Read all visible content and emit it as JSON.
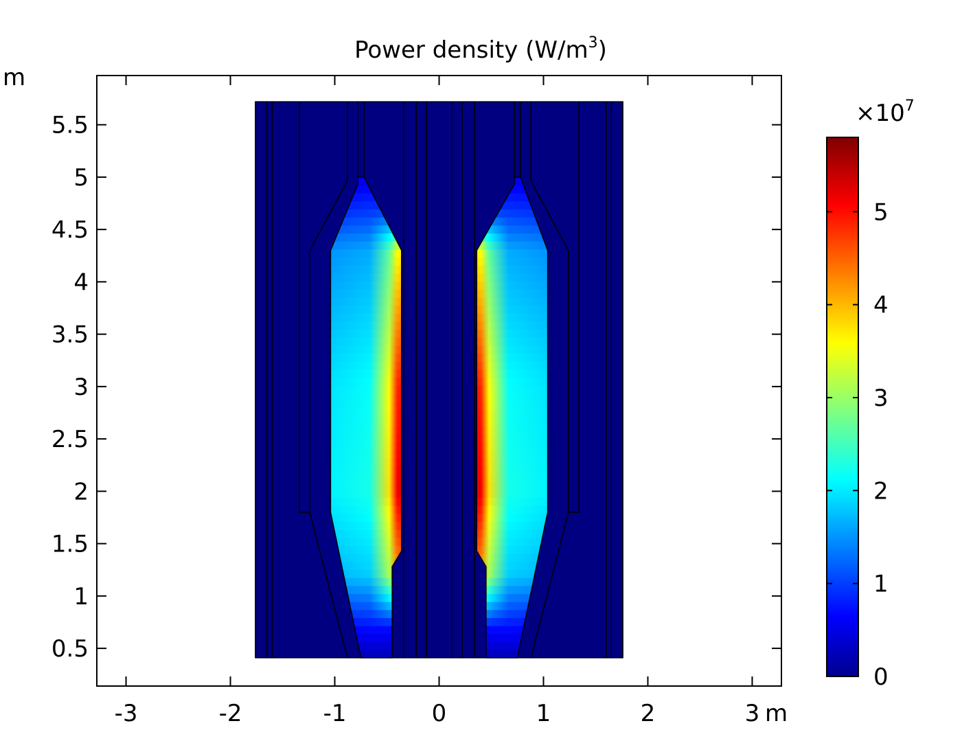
{
  "chart_data": {
    "type": "heatmap",
    "title": "Power density (W/m",
    "title_superscript": "3",
    "title_suffix": ")",
    "x_unit": "m",
    "y_unit": "m",
    "xlim": [
      -3.28,
      3.28
    ],
    "ylim": [
      0.14,
      5.97
    ],
    "x_ticks": [
      -3,
      -2,
      -1,
      0,
      1,
      2,
      3
    ],
    "x_tick_labels": [
      "-3",
      "-2",
      "-1",
      "0",
      "1",
      "2",
      "3"
    ],
    "y_ticks": [
      0.5,
      1,
      1.5,
      2,
      2.5,
      3,
      3.5,
      4,
      4.5,
      5,
      5.5
    ],
    "y_tick_labels": [
      "0.5",
      "1",
      "1.5",
      "2",
      "2.5",
      "3",
      "3.5",
      "4",
      "4.5",
      "5",
      "5.5"
    ],
    "grid": false,
    "colorbar": {
      "colormap": "jet",
      "range": [
        0,
        5.8
      ],
      "multiplier": "×10",
      "multiplier_exponent": "7",
      "ticks": [
        0,
        1,
        2,
        3,
        4,
        5
      ],
      "tick_labels": [
        "0",
        "1",
        "2",
        "3",
        "4",
        "5"
      ],
      "placement": "right"
    },
    "domain": {
      "x_extent": [
        -1.76,
        1.76
      ],
      "y_extent": [
        0.41,
        5.72
      ],
      "background_value": 0,
      "vertical_boundaries_x": [
        -1.76,
        -1.65,
        -1.6,
        -0.22,
        -0.12,
        0.12,
        0.22,
        1.6,
        1.65,
        1.76
      ]
    },
    "regions": [
      {
        "name": "left-winding",
        "polygon": [
          [
            -0.78,
            5.0
          ],
          [
            -0.72,
            5.0
          ],
          [
            -0.36,
            4.3
          ],
          [
            -0.36,
            1.43
          ],
          [
            -0.45,
            1.28
          ],
          [
            -0.45,
            0.41
          ],
          [
            -0.75,
            0.41
          ],
          [
            -1.04,
            1.8
          ],
          [
            -1.04,
            4.3
          ],
          [
            -0.78,
            4.93
          ]
        ],
        "hot_edge": "right",
        "profile_y": [
          0.41,
          0.7,
          1.2,
          2.0,
          3.0,
          4.3,
          4.7,
          5.0,
          5.7
        ],
        "edge_values_e7": [
          0.3,
          0.8,
          4.3,
          5.3,
          5.0,
          3.7,
          1.0,
          0.6,
          0.7
        ],
        "bulk_values_e7": [
          0.3,
          0.8,
          1.9,
          2.3,
          2.2,
          1.7,
          1.0,
          0.6,
          0.7
        ]
      },
      {
        "name": "right-winding",
        "polygon": [
          [
            0.72,
            5.0
          ],
          [
            0.78,
            5.0
          ],
          [
            1.04,
            4.3
          ],
          [
            1.04,
            1.8
          ],
          [
            0.75,
            0.41
          ],
          [
            0.45,
            0.41
          ],
          [
            0.45,
            1.28
          ],
          [
            0.36,
            1.43
          ],
          [
            0.36,
            4.3
          ],
          [
            0.72,
            4.93
          ]
        ],
        "hot_edge": "left",
        "profile_y": [
          0.41,
          0.7,
          1.2,
          2.0,
          3.0,
          4.3,
          4.7,
          5.0,
          5.7
        ],
        "edge_values_e7": [
          0.3,
          0.8,
          4.3,
          5.3,
          5.0,
          3.7,
          1.0,
          0.6,
          0.7
        ],
        "bulk_values_e7": [
          0.3,
          0.8,
          1.9,
          2.3,
          2.2,
          1.7,
          1.0,
          0.6,
          0.7
        ]
      }
    ],
    "outlines": [
      [
        [
          -1.34,
          5.72
        ],
        [
          -1.34,
          1.8
        ],
        [
          -1.24,
          1.8
        ],
        [
          -1.24,
          4.3
        ],
        [
          -0.88,
          4.96
        ],
        [
          -0.88,
          5.72
        ]
      ],
      [
        [
          1.34,
          5.72
        ],
        [
          1.34,
          1.8
        ],
        [
          1.24,
          1.8
        ],
        [
          1.24,
          4.3
        ],
        [
          0.88,
          4.96
        ],
        [
          0.88,
          5.72
        ]
      ],
      [
        [
          -1.24,
          1.8
        ],
        [
          -0.88,
          0.41
        ]
      ],
      [
        [
          1.24,
          1.8
        ],
        [
          0.88,
          0.41
        ]
      ],
      [
        [
          -0.78,
          5.72
        ],
        [
          -0.78,
          5.0
        ]
      ],
      [
        [
          -0.72,
          5.72
        ],
        [
          -0.72,
          5.0
        ]
      ],
      [
        [
          0.72,
          5.72
        ],
        [
          0.72,
          5.0
        ]
      ],
      [
        [
          0.78,
          5.72
        ],
        [
          0.78,
          5.0
        ]
      ],
      [
        [
          -0.34,
          5.72
        ],
        [
          -0.34,
          0.41
        ]
      ],
      [
        [
          0.34,
          5.72
        ],
        [
          0.34,
          0.41
        ]
      ]
    ]
  }
}
